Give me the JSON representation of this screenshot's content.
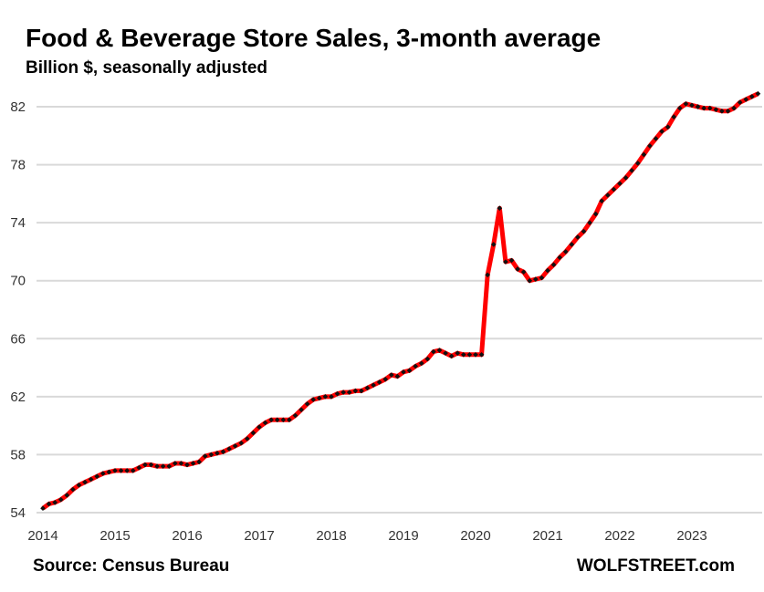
{
  "chart_data": {
    "type": "line",
    "title": "Food & Beverage Store Sales, 3-month average",
    "subtitle": "Billion $, seasonally adjusted",
    "source": "Source: Census Bureau",
    "brand": "WOLFSTREET.com",
    "xlabel": "",
    "ylabel": "",
    "ylim": [
      54,
      82
    ],
    "xlim": [
      2014,
      2024
    ],
    "yticks": [
      "54",
      "58",
      "62",
      "66",
      "70",
      "74",
      "78",
      "82"
    ],
    "xticks": [
      "2014",
      "2015",
      "2016",
      "2017",
      "2018",
      "2019",
      "2020",
      "2021",
      "2022",
      "2023"
    ],
    "grid": "horizontal",
    "line_color": "#ff0000",
    "marker_color": "#111111",
    "start": "2014-01",
    "frequency": "monthly",
    "series": [
      {
        "name": "Food & Beverage Store Sales",
        "values": [
          54.3,
          54.6,
          54.7,
          54.9,
          55.2,
          55.6,
          55.9,
          56.1,
          56.3,
          56.5,
          56.7,
          56.8,
          56.9,
          56.9,
          56.9,
          56.9,
          57.1,
          57.3,
          57.3,
          57.2,
          57.2,
          57.2,
          57.4,
          57.4,
          57.3,
          57.4,
          57.5,
          57.9,
          58.0,
          58.1,
          58.2,
          58.4,
          58.6,
          58.8,
          59.1,
          59.5,
          59.9,
          60.2,
          60.4,
          60.4,
          60.4,
          60.4,
          60.7,
          61.1,
          61.5,
          61.8,
          61.9,
          62.0,
          62.0,
          62.2,
          62.3,
          62.3,
          62.4,
          62.4,
          62.6,
          62.8,
          63.0,
          63.2,
          63.5,
          63.4,
          63.7,
          63.8,
          64.1,
          64.3,
          64.6,
          65.1,
          65.2,
          65.0,
          64.8,
          65.0,
          64.9,
          64.9,
          64.9,
          64.9,
          70.4,
          72.5,
          75.0,
          71.3,
          71.4,
          70.8,
          70.6,
          70.0,
          70.1,
          70.2,
          70.7,
          71.1,
          71.6,
          72.0,
          72.5,
          73.0,
          73.4,
          74.0,
          74.6,
          75.5,
          75.9,
          76.3,
          76.7,
          77.1,
          77.6,
          78.1,
          78.7,
          79.3,
          79.8,
          80.3,
          80.6,
          81.3,
          81.9,
          82.2,
          82.1,
          82.0,
          81.9,
          81.9,
          81.8,
          81.7,
          81.7,
          81.9,
          82.3,
          82.5,
          82.7,
          82.9
        ]
      }
    ]
  }
}
